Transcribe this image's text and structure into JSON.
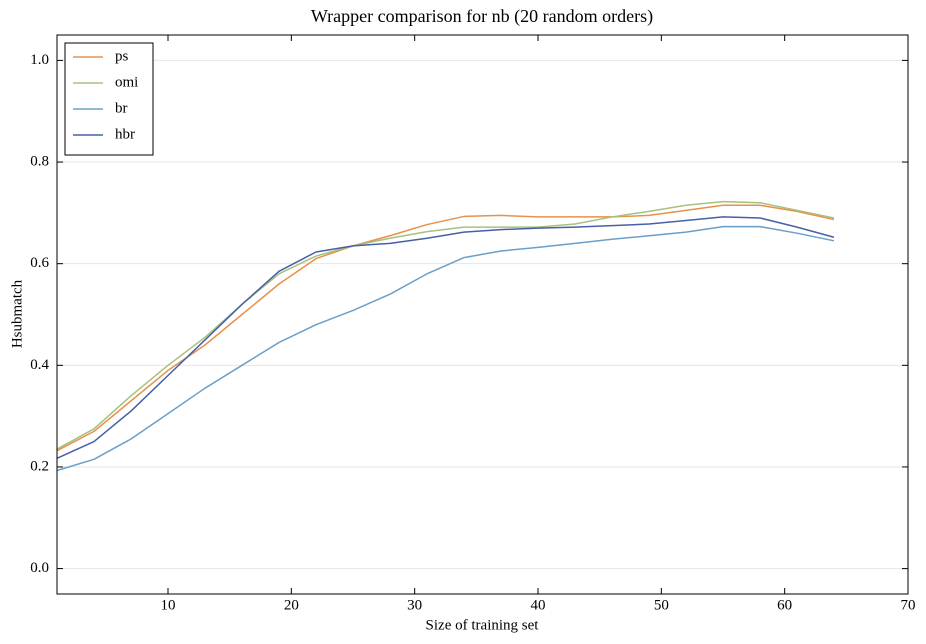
{
  "chart_data": {
    "type": "line",
    "title": "Wrapper comparison for nb (20 random orders)",
    "xlabel": "Size of training set",
    "ylabel": "Hsubmatch",
    "x": [
      1,
      4,
      7,
      10,
      13,
      16,
      19,
      22,
      25,
      28,
      31,
      34,
      37,
      40,
      43,
      46,
      49,
      52,
      55,
      58,
      61,
      64
    ],
    "series": [
      {
        "name": "ps",
        "color": "#e8914a",
        "values": [
          0.232,
          0.27,
          0.33,
          0.39,
          0.44,
          0.5,
          0.56,
          0.61,
          0.635,
          0.655,
          0.677,
          0.693,
          0.695,
          0.692,
          0.692,
          0.692,
          0.695,
          0.705,
          0.715,
          0.715,
          0.703,
          0.687
        ]
      },
      {
        "name": "omi",
        "color": "#a8c07f",
        "values": [
          0.235,
          0.275,
          0.34,
          0.4,
          0.455,
          0.52,
          0.58,
          0.615,
          0.635,
          0.65,
          0.663,
          0.672,
          0.672,
          0.672,
          0.678,
          0.692,
          0.703,
          0.715,
          0.722,
          0.72,
          0.705,
          0.69
        ]
      },
      {
        "name": "br",
        "color": "#6a9fc9",
        "values": [
          0.193,
          0.215,
          0.255,
          0.305,
          0.355,
          0.4,
          0.445,
          0.48,
          0.508,
          0.54,
          0.58,
          0.612,
          0.625,
          0.632,
          0.64,
          0.648,
          0.655,
          0.662,
          0.673,
          0.673,
          0.66,
          0.645
        ]
      },
      {
        "name": "hbr",
        "color": "#4660a8",
        "values": [
          0.217,
          0.25,
          0.31,
          0.38,
          0.45,
          0.52,
          0.585,
          0.623,
          0.635,
          0.64,
          0.65,
          0.662,
          0.667,
          0.67,
          0.672,
          0.675,
          0.678,
          0.685,
          0.692,
          0.69,
          0.672,
          0.652
        ]
      }
    ],
    "xlim": [
      1,
      70
    ],
    "ylim": [
      -0.05,
      1.05
    ],
    "xticks": [
      10,
      20,
      30,
      40,
      50,
      60,
      70
    ],
    "yticks": [
      {
        "value": 0,
        "label": "0.0"
      },
      0.2,
      0.4,
      0.6,
      0.8,
      {
        "value": 1,
        "label": "1.0"
      }
    ],
    "grid": true,
    "legend": "upper left"
  }
}
